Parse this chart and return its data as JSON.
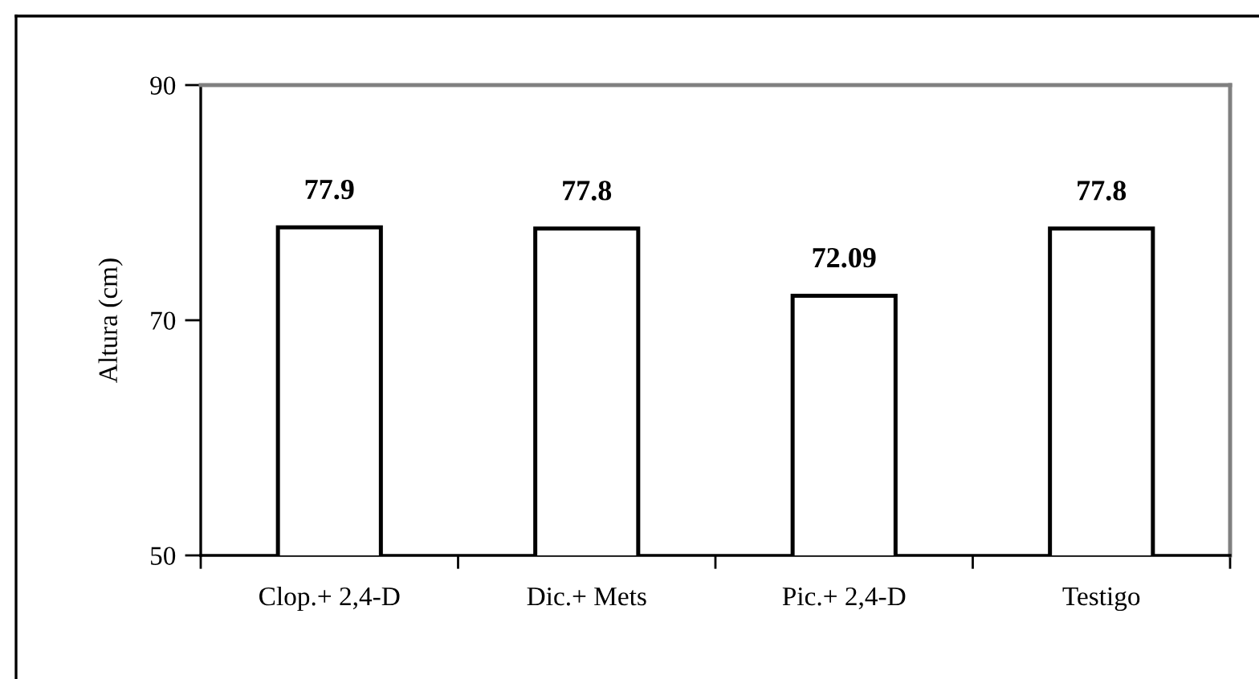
{
  "chart_data": {
    "type": "bar",
    "ylabel": "Altura (cm)",
    "categories": [
      "Clop.+ 2,4-D",
      "Dic.+ Mets",
      "Pic.+ 2,4-D",
      "Testigo"
    ],
    "values": [
      77.9,
      77.8,
      72.09,
      77.8
    ],
    "color": "#ffffff",
    "ylim": [
      50,
      90
    ],
    "yticks": [
      50,
      70,
      90
    ],
    "grid": false,
    "data_labels": true
  }
}
